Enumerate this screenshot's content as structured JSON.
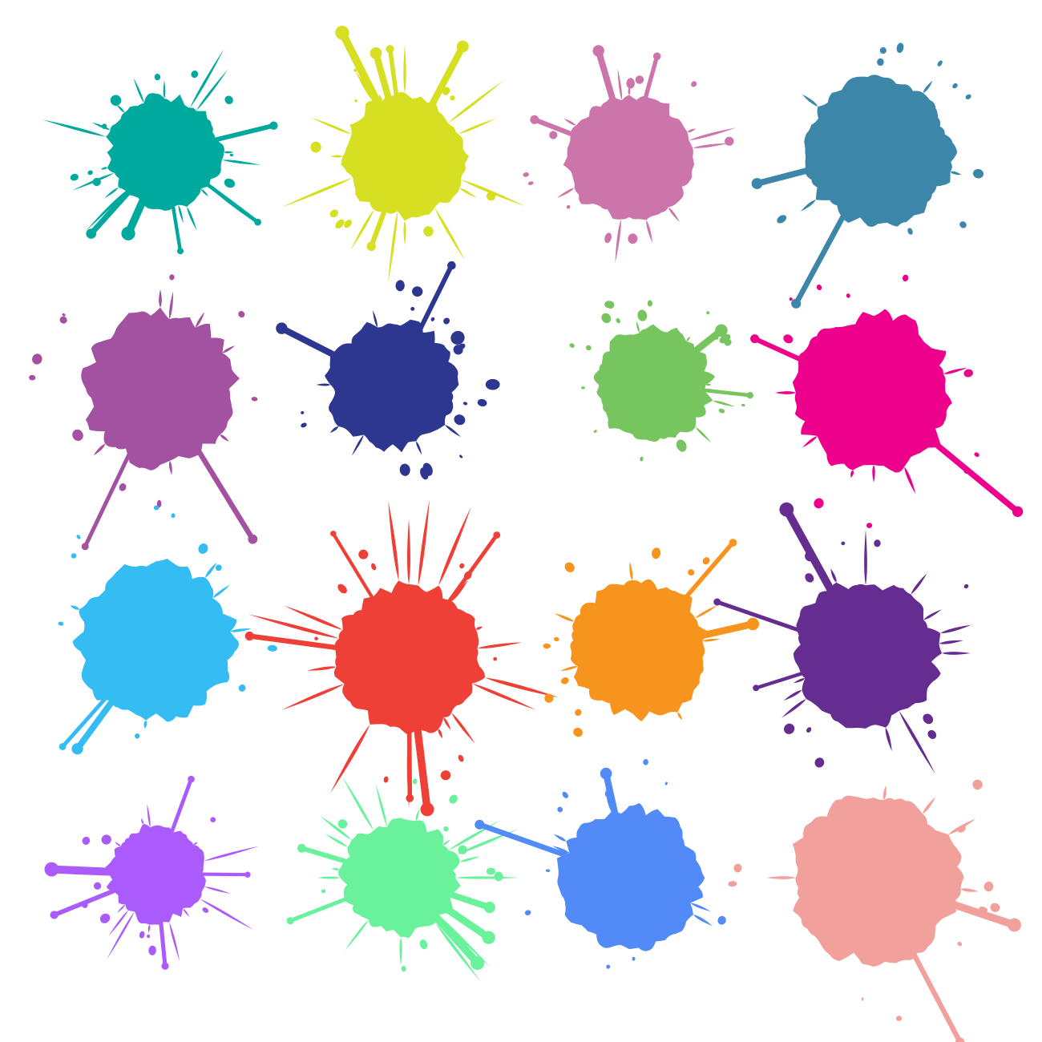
{
  "background": "#ffffff",
  "splats": [
    {
      "name": "teal-splat",
      "color": "#00a99d",
      "seed": 11,
      "style": "spiky"
    },
    {
      "name": "lime-splat",
      "color": "#d7df23",
      "seed": 23,
      "style": "spiky"
    },
    {
      "name": "pink-splat",
      "color": "#cc75ab",
      "seed": 37,
      "style": "drippy"
    },
    {
      "name": "steel-blue-splat",
      "color": "#3c86a9",
      "seed": 41,
      "style": "blob"
    },
    {
      "name": "purple-splat",
      "color": "#a351a1",
      "seed": 53,
      "style": "blob"
    },
    {
      "name": "navy-splat",
      "color": "#2e3790",
      "seed": 67,
      "style": "dotted"
    },
    {
      "name": "green-splat",
      "color": "#77c55e",
      "seed": 71,
      "style": "dotted"
    },
    {
      "name": "magenta-splat",
      "color": "#ec008c",
      "seed": 83,
      "style": "blob"
    },
    {
      "name": "sky-blue-splat",
      "color": "#35bcf2",
      "seed": 97,
      "style": "blob"
    },
    {
      "name": "red-splat",
      "color": "#ee4036",
      "seed": 101,
      "style": "spiky"
    },
    {
      "name": "orange-splat",
      "color": "#f7941e",
      "seed": 113,
      "style": "blob"
    },
    {
      "name": "violet-splat",
      "color": "#652d90",
      "seed": 127,
      "style": "drippy"
    },
    {
      "name": "lavender-splat",
      "color": "#ab5bfc",
      "seed": 131,
      "style": "spiky"
    },
    {
      "name": "mint-splat",
      "color": "#69f19c",
      "seed": 149,
      "style": "spiky"
    },
    {
      "name": "blue-splat",
      "color": "#528bf7",
      "seed": 157,
      "style": "blob"
    },
    {
      "name": "salmon-splat",
      "color": "#f2a09c",
      "seed": 163,
      "style": "blob"
    }
  ]
}
